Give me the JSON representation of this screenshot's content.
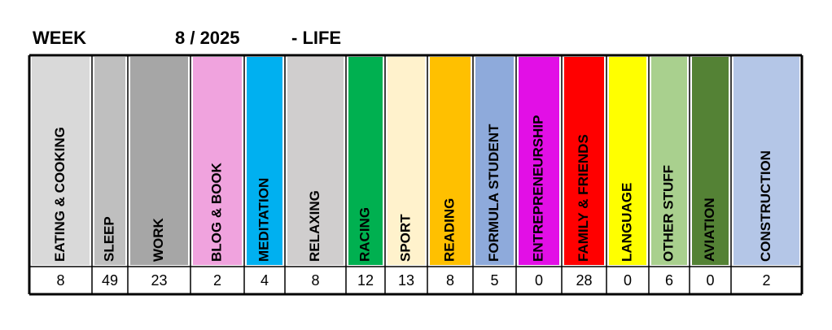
{
  "header": {
    "week_label": "WEEK",
    "week": "8 / 2025",
    "section": "- LIFE"
  },
  "table": {
    "columns": [
      {
        "label": "EATING & COOKING",
        "color": "#d9d9d9"
      },
      {
        "label": "SLEEP",
        "color": "#bfbfbf"
      },
      {
        "label": "WORK",
        "color": "#a6a6a6"
      },
      {
        "label": "BLOG & BOOK",
        "color": "#f0a3de"
      },
      {
        "label": "MEDITATION",
        "color": "#00b0f0"
      },
      {
        "label": "RELAXING",
        "color": "#d0cece"
      },
      {
        "label": "RACING",
        "color": "#00b050"
      },
      {
        "label": "SPORT",
        "color": "#fff2cc"
      },
      {
        "label": "READING",
        "color": "#ffc000"
      },
      {
        "label": "FORMULA STUDENT",
        "color": "#8eaadb"
      },
      {
        "label": "ENTREPRENEURSHIP",
        "color": "#e20fe6"
      },
      {
        "label": "FAMILY & FRIENDS",
        "color": "#ff0000"
      },
      {
        "label": "LANGUAGE",
        "color": "#ffff00"
      },
      {
        "label": "OTHER STUFF",
        "color": "#a9d08e"
      },
      {
        "label": "AVIATION",
        "color": "#548235"
      },
      {
        "label": "CONSTRUCTION",
        "color": "#b4c6e7"
      }
    ],
    "values": [
      8,
      49,
      23,
      2,
      4,
      8,
      12,
      13,
      8,
      5,
      0,
      28,
      0,
      6,
      0,
      2
    ]
  }
}
